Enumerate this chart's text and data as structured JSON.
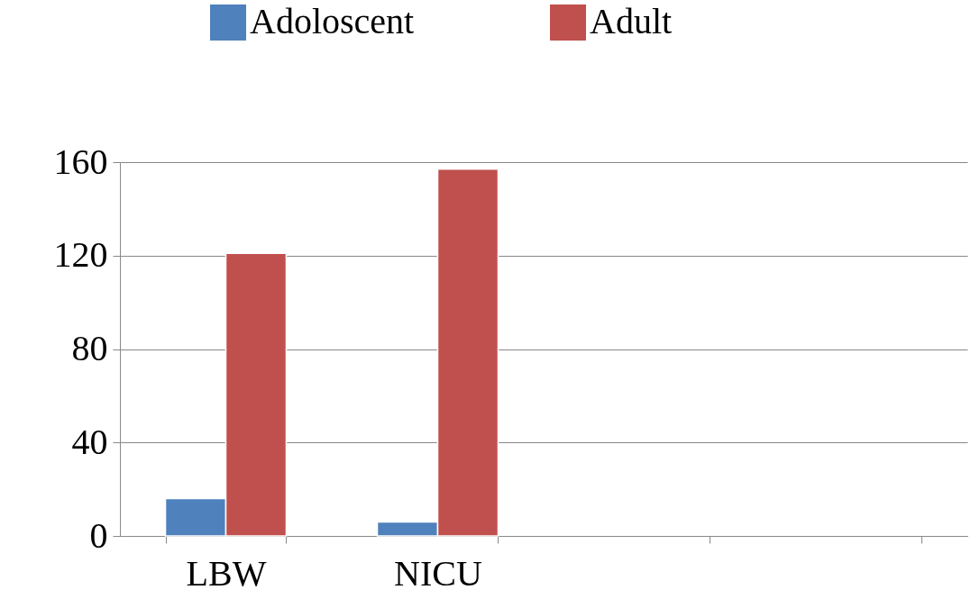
{
  "chart_data": {
    "type": "bar",
    "categories": [
      "LBW",
      "NICU",
      null,
      null
    ],
    "series": [
      {
        "name": "Adoloscent",
        "color": "#4f81bd",
        "values": [
          16,
          6,
          null,
          null
        ]
      },
      {
        "name": "Adult",
        "color": "#c0504d",
        "values": [
          121,
          157,
          null,
          null
        ]
      }
    ],
    "ylim": [
      0,
      160
    ],
    "yticks": [
      0,
      40,
      80,
      120,
      160
    ],
    "grid": "y",
    "legend": "top"
  }
}
